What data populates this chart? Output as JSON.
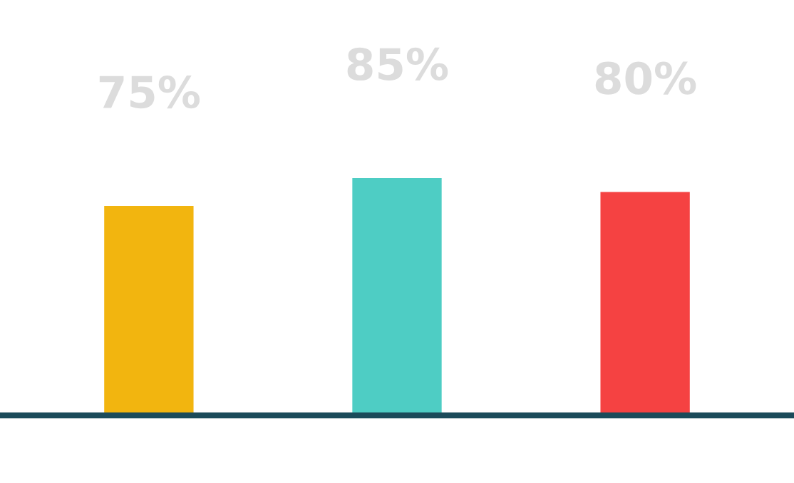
{
  "chart_data": {
    "type": "bar",
    "categories": [
      null,
      null,
      null
    ],
    "values": [
      75,
      85,
      80
    ],
    "colors": [
      "#f2b50f",
      "#4ecdc4",
      "#f54242"
    ],
    "value_labels": [
      "75%",
      "85%",
      "80%"
    ],
    "grid": false,
    "legend": false
  }
}
